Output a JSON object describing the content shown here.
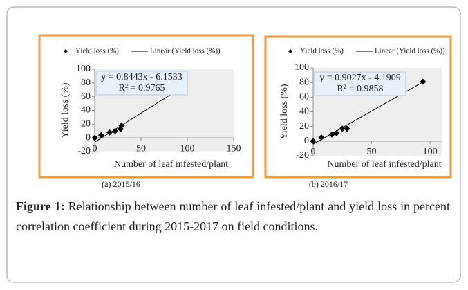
{
  "chart_data": [
    {
      "type": "scatter",
      "subtitle": "(a) 2015/16",
      "xlabel": "Number of leaf infested/plant",
      "ylabel": "Yield loss (%)",
      "annotations": [
        "y = 0.8443x - 6.1533",
        "R² = 0.9765"
      ],
      "xlim": [
        0,
        150
      ],
      "xticks": [
        0,
        50,
        100,
        150
      ],
      "ylim": [
        -20,
        100
      ],
      "yticks": [
        -20,
        0,
        20,
        40,
        60,
        80,
        100
      ],
      "series": [
        {
          "name": "Yield loss (%)",
          "color": "#000000",
          "x": [
            0,
            7,
            16,
            22,
            28,
            29,
            96
          ],
          "values": [
            0,
            4,
            8,
            10,
            13,
            18,
            78
          ]
        },
        {
          "name": "Linear (Yield loss (%))",
          "color": "#000000",
          "x": [
            0,
            96
          ],
          "values": [
            -6.2,
            74.9
          ]
        }
      ]
    },
    {
      "type": "scatter",
      "subtitle": "(b) 2016/17",
      "xlabel": "Number of leaf infested/plant",
      "ylabel": "Yield loss (%)",
      "annotations": [
        "y = 0.9027x - 4.1909",
        "R² = 0.9858"
      ],
      "xlim": [
        0,
        110
      ],
      "xticks": [
        0,
        50,
        100
      ],
      "ylim": [
        -20,
        100
      ],
      "yticks": [
        -20,
        0,
        20,
        40,
        60,
        80,
        100
      ],
      "series": [
        {
          "name": "Yield loss (%)",
          "color": "#000000",
          "x": [
            0,
            7,
            16,
            20,
            25,
            29,
            94
          ],
          "values": [
            0,
            5,
            9,
            11,
            17,
            17,
            81
          ]
        },
        {
          "name": "Linear (Yield loss (%))",
          "color": "#000000",
          "x": [
            0,
            94
          ],
          "values": [
            -4.2,
            80.7
          ]
        }
      ]
    }
  ],
  "caption": {
    "label": "Figure 1:",
    "text": "Relationship between number of leaf infested/plant and yield loss in percent correlation coefficient during 2015-2017 on field conditions."
  }
}
